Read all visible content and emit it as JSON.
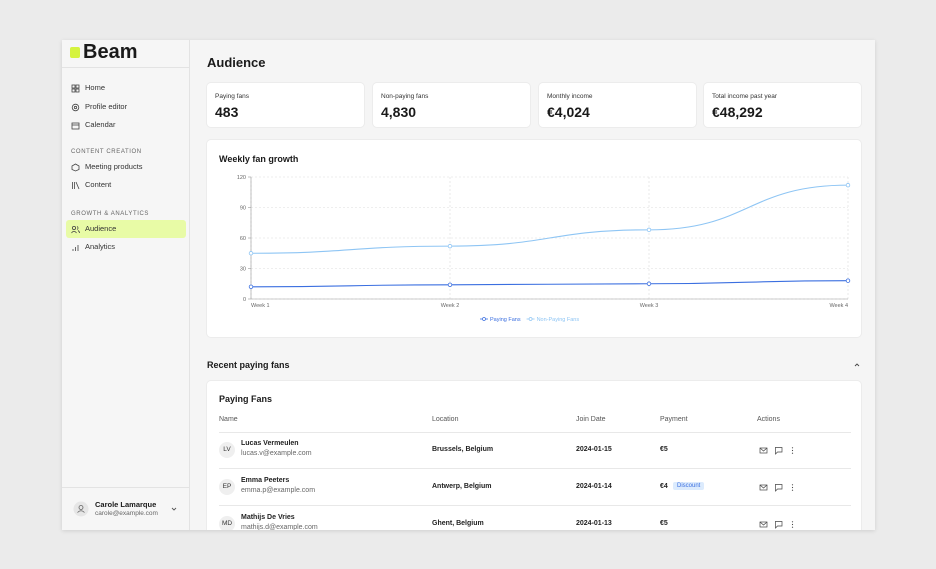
{
  "sidebar": {
    "logo": "Beam",
    "nav": [
      "Home",
      "Profile editor",
      "Calendar"
    ],
    "sections": [
      {
        "title": "CONTENT CREATION",
        "items": [
          "Meeting products",
          "Content"
        ]
      },
      {
        "title": "GROWTH & ANALYTICS",
        "items": [
          "Audience",
          "Analytics"
        ]
      }
    ],
    "user": {
      "name": "Carole Lamarque",
      "email": "carole@example.com"
    }
  },
  "header": {
    "title": "Audience"
  },
  "stats": [
    {
      "label": "Paying fans",
      "value": "483"
    },
    {
      "label": "Non-paying fans",
      "value": "4,830"
    },
    {
      "label": "Monthly income",
      "value": "€4,024"
    },
    {
      "label": "Total income past year",
      "value": "€48,292"
    }
  ],
  "chart_data": {
    "type": "line",
    "title": "Weekly fan growth",
    "categories": [
      "Week 1",
      "Week 2",
      "Week 3",
      "Week 4"
    ],
    "series": [
      {
        "name": "Paying Fans",
        "color": "#3b6fe0",
        "values": [
          12,
          14,
          15,
          18
        ]
      },
      {
        "name": "Non-Paying Fans",
        "color": "#8ec5f4",
        "values": [
          45,
          52,
          68,
          112
        ]
      }
    ],
    "ylim": [
      0,
      120
    ],
    "yticks": [
      0,
      30,
      60,
      90,
      120
    ],
    "grid": true,
    "legend": "bottom"
  },
  "recent": {
    "title": "Recent paying fans",
    "table_title": "Paying Fans",
    "columns": [
      "Name",
      "Location",
      "Join Date",
      "Payment",
      "Actions"
    ],
    "rows": [
      {
        "initials": "LV",
        "name": "Lucas Vermeulen",
        "email": "lucas.v@example.com",
        "location": "Brussels, Belgium",
        "date": "2024-01-15",
        "payment": "€5"
      },
      {
        "initials": "EP",
        "name": "Emma Peeters",
        "email": "emma.p@example.com",
        "location": "Antwerp, Belgium",
        "date": "2024-01-14",
        "payment": "€4",
        "badge": "Discount"
      },
      {
        "initials": "MD",
        "name": "Mathijs De Vries",
        "email": "mathijs.d@example.com",
        "location": "Ghent, Belgium",
        "date": "2024-01-13",
        "payment": "€5"
      }
    ]
  }
}
